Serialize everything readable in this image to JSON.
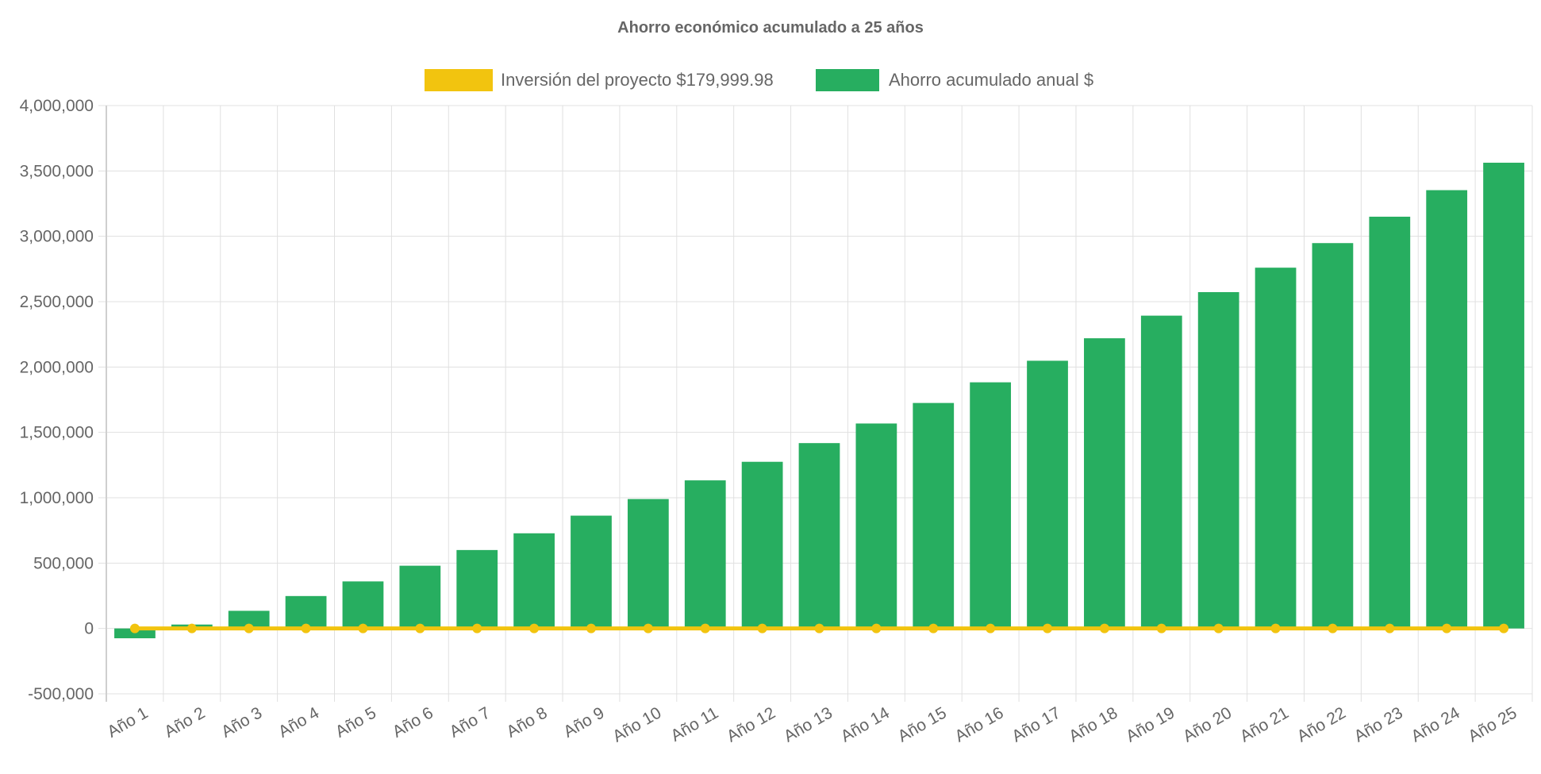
{
  "chart_data": {
    "type": "bar",
    "title": "Ahorro económico acumulado a 25 años",
    "legend_position": "top",
    "grid": true,
    "categories": [
      "Año 1",
      "Año 2",
      "Año 3",
      "Año 4",
      "Año 5",
      "Año 6",
      "Año 7",
      "Año 8",
      "Año 9",
      "Año 10",
      "Año 11",
      "Año 12",
      "Año 13",
      "Año 14",
      "Año 15",
      "Año 16",
      "Año 17",
      "Año 18",
      "Año 19",
      "Año 20",
      "Año 21",
      "Año 22",
      "Año 23",
      "Año 24",
      "Año 25"
    ],
    "ylim": [
      -500000,
      4000000
    ],
    "yticks": [
      -500000,
      0,
      500000,
      1000000,
      1500000,
      2000000,
      2500000,
      3000000,
      3500000,
      4000000
    ],
    "ytick_labels": [
      "-500,000",
      "0",
      "500,000",
      "1,000,000",
      "1,500,000",
      "2,000,000",
      "2,500,000",
      "3,000,000",
      "3,500,000",
      "4,000,000"
    ],
    "series": [
      {
        "name": "Inversión del proyecto $179,999.98",
        "type": "line",
        "color": "#f2c40f",
        "values": [
          0,
          0,
          0,
          0,
          0,
          0,
          0,
          0,
          0,
          0,
          0,
          0,
          0,
          0,
          0,
          0,
          0,
          0,
          0,
          0,
          0,
          0,
          0,
          0,
          0
        ]
      },
      {
        "name": "Ahorro acumulado anual $",
        "type": "bar",
        "color": "#27ae60",
        "values": [
          -75000,
          30000,
          135000,
          248000,
          360000,
          480000,
          600000,
          728000,
          863000,
          990000,
          1133000,
          1275000,
          1418000,
          1568000,
          1725000,
          1883000,
          2048000,
          2220000,
          2393000,
          2573000,
          2760000,
          2948000,
          3150000,
          3353000,
          3563000
        ]
      }
    ]
  }
}
